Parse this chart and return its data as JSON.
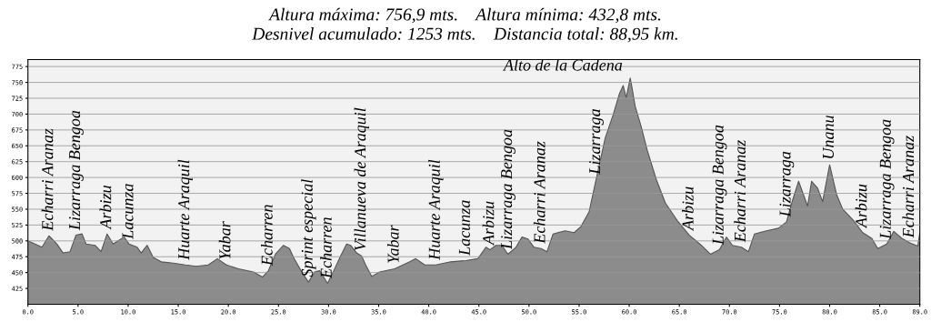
{
  "chart_data": {
    "type": "area",
    "title": "Altura máxima: 756,9 mts.    Altura mínima: 432,8 mts.",
    "subtitle": "Desnivel acumulado: 1253 mts.    Distancia total: 88,95 km.",
    "x": [
      0,
      1.4,
      2.1,
      2.9,
      3.5,
      4.2,
      4.8,
      5.4,
      5.8,
      6.7,
      7.3,
      7.9,
      8.5,
      9.0,
      9.6,
      10.1,
      10.9,
      11.3,
      11.9,
      12.5,
      13.3,
      14.5,
      15.7,
      16.8,
      18.0,
      18.9,
      19.8,
      21.0,
      22.5,
      23.4,
      24.0,
      24.7,
      25.5,
      26.1,
      26.5,
      27.4,
      28.0,
      28.6,
      29.1,
      29.9,
      30.4,
      31.2,
      31.8,
      32.2,
      32.8,
      33.3,
      33.7,
      34.3,
      35.1,
      36.6,
      38.1,
      38.7,
      39.6,
      40.7,
      42.2,
      43.7,
      44.9,
      45.7,
      46.1,
      46.7,
      47.3,
      47.9,
      48.7,
      49.3,
      49.9,
      50.5,
      51.2,
      51.8,
      52.4,
      53.6,
      54.5,
      55.2,
      56.0,
      56.7,
      57.6,
      58.4,
      59.0,
      59.4,
      59.7,
      60.1,
      60.3,
      60.6,
      61.2,
      61.8,
      62.7,
      63.6,
      64.8,
      66.0,
      67.2,
      68.1,
      69.0,
      69.7,
      70.3,
      71.2,
      71.9,
      72.5,
      73.7,
      74.9,
      75.7,
      76.3,
      76.9,
      77.8,
      78.2,
      78.8,
      79.3,
      80.0,
      80.7,
      81.3,
      82.4,
      83.3,
      84.2,
      84.8,
      85.7,
      86.4,
      87.2,
      88.0,
      88.8,
      89.0
    ],
    "values": [
      500,
      490,
      508,
      495,
      481,
      483,
      509,
      511,
      495,
      493,
      483,
      511,
      495,
      500,
      506,
      495,
      490,
      481,
      493,
      474,
      467,
      465,
      462,
      460,
      462,
      472,
      462,
      456,
      451,
      443,
      453,
      479,
      493,
      488,
      474,
      449,
      435,
      451,
      453,
      433,
      449,
      476,
      495,
      493,
      481,
      476,
      462,
      444,
      451,
      456,
      467,
      472,
      462,
      462,
      467,
      469,
      472,
      490,
      486,
      493,
      493,
      479,
      490,
      506,
      503,
      490,
      488,
      483,
      511,
      516,
      513,
      523,
      546,
      597,
      662,
      699,
      731,
      745,
      726,
      756.9,
      740,
      712,
      680,
      643,
      597,
      560,
      532,
      509,
      493,
      479,
      486,
      506,
      493,
      490,
      483,
      511,
      516,
      520,
      530,
      564,
      594,
      555,
      594,
      583,
      562,
      620,
      573,
      550,
      532,
      513,
      504,
      488,
      495,
      515,
      504,
      497,
      492,
      513
    ],
    "color": "#8c8c8c",
    "xlim": [
      0,
      89
    ],
    "ylim": [
      400,
      786
    ],
    "xticks": [
      {
        "value": 0,
        "label": "0.0"
      },
      {
        "value": 5,
        "label": "5.0"
      },
      {
        "value": 10,
        "label": "10.0"
      },
      {
        "value": 15,
        "label": "15.0"
      },
      {
        "value": 20,
        "label": "20.0"
      },
      {
        "value": 25,
        "label": "25.0"
      },
      {
        "value": 30,
        "label": "30.0"
      },
      {
        "value": 35,
        "label": "35.0"
      },
      {
        "value": 40,
        "label": "40.0"
      },
      {
        "value": 45,
        "label": "45.0"
      },
      {
        "value": 50,
        "label": "50.0"
      },
      {
        "value": 55,
        "label": "55.0"
      },
      {
        "value": 60,
        "label": "60.0"
      },
      {
        "value": 65,
        "label": "65.0"
      },
      {
        "value": 70,
        "label": "70.0"
      },
      {
        "value": 75,
        "label": "75.0"
      },
      {
        "value": 80,
        "label": "80.0"
      },
      {
        "value": 85,
        "label": "85.0"
      },
      {
        "value": 89,
        "label": "89.0"
      }
    ],
    "yticks": [
      425,
      450,
      475,
      500,
      525,
      550,
      575,
      600,
      625,
      650,
      675,
      700,
      725,
      750,
      775
    ],
    "grid": "y",
    "annotations": [
      {
        "text": "Alto de la Cadena",
        "x": 60.1,
        "y": 756.9
      },
      {
        "text": "Echarri Aranaz",
        "x": 2.1,
        "y": 508
      },
      {
        "text": "Lizarraga Bengoa",
        "x": 4.8,
        "y": 509
      },
      {
        "text": "Arbizu",
        "x": 7.9,
        "y": 511
      },
      {
        "text": "Lacunza",
        "x": 10.1,
        "y": 495
      },
      {
        "text": "Huarte Araquil",
        "x": 15.7,
        "y": 462
      },
      {
        "text": "Yabar",
        "x": 19.8,
        "y": 462
      },
      {
        "text": "Echarren",
        "x": 24.0,
        "y": 453
      },
      {
        "text": "Sprint especial",
        "x": 28.0,
        "y": 435
      },
      {
        "text": "Echarren",
        "x": 29.9,
        "y": 433
      },
      {
        "text": "Villanueva de Araquil",
        "x": 33.3,
        "y": 476
      },
      {
        "text": "Yabar",
        "x": 36.6,
        "y": 456
      },
      {
        "text": "Huarte Araquil",
        "x": 40.7,
        "y": 462
      },
      {
        "text": "Lacunza",
        "x": 43.7,
        "y": 469
      },
      {
        "text": "Arbizu",
        "x": 46.1,
        "y": 486
      },
      {
        "text": "Lizarraga Bengoa",
        "x": 47.9,
        "y": 479
      },
      {
        "text": "Echarri Aranaz",
        "x": 51.2,
        "y": 488
      },
      {
        "text": "Lizarraga",
        "x": 56.7,
        "y": 597
      },
      {
        "text": "Arbizu",
        "x": 66.0,
        "y": 509
      },
      {
        "text": "Lizarraga Bengoa",
        "x": 69.0,
        "y": 486
      },
      {
        "text": "Echarri Aranaz",
        "x": 71.2,
        "y": 490
      },
      {
        "text": "Lizarraga",
        "x": 75.7,
        "y": 530
      },
      {
        "text": "Unanu",
        "x": 80.0,
        "y": 620
      },
      {
        "text": "Arbizu",
        "x": 83.3,
        "y": 513
      },
      {
        "text": "Lizarraga Bengoa",
        "x": 85.7,
        "y": 495
      },
      {
        "text": "Echarri Aranaz",
        "x": 88.0,
        "y": 497
      }
    ]
  }
}
